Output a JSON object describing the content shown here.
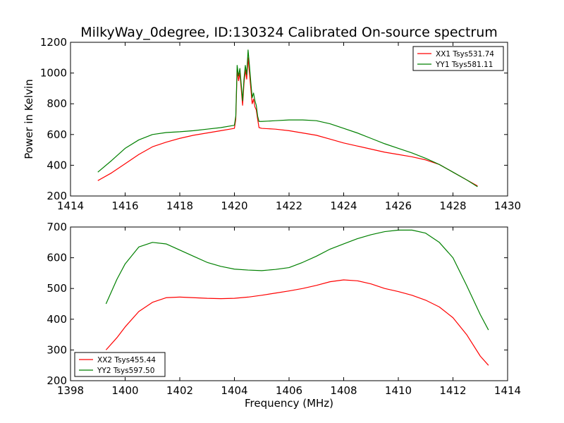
{
  "title": "MilkyWay_0degree, ID:130324 Calibrated On-source spectrum",
  "colors": {
    "xx": "#ff0000",
    "yy": "#008000"
  },
  "chart_data": [
    {
      "type": "line",
      "title": "MilkyWay_0degree, ID:130324 Calibrated On-source spectrum",
      "xlabel": "",
      "ylabel": "Power in Kelvin",
      "xlim": [
        1414,
        1430
      ],
      "ylim": [
        200,
        1200
      ],
      "xticks": [
        1414,
        1416,
        1418,
        1420,
        1422,
        1424,
        1426,
        1428,
        1430
      ],
      "yticks": [
        200,
        400,
        600,
        800,
        1000,
        1200
      ],
      "grid": false,
      "legend_position": "top-right",
      "series": [
        {
          "name": "XX1 Tsys531.74",
          "color": "#ff0000",
          "points": [
            [
              1415.0,
              300
            ],
            [
              1415.5,
              350
            ],
            [
              1416.0,
              410
            ],
            [
              1416.5,
              470
            ],
            [
              1417.0,
              520
            ],
            [
              1417.5,
              550
            ],
            [
              1418.0,
              575
            ],
            [
              1418.5,
              595
            ],
            [
              1419.0,
              610
            ],
            [
              1419.5,
              625
            ],
            [
              1420.0,
              640
            ],
            [
              1420.05,
              700
            ],
            [
              1420.1,
              1020
            ],
            [
              1420.15,
              950
            ],
            [
              1420.2,
              1000
            ],
            [
              1420.3,
              790
            ],
            [
              1420.35,
              930
            ],
            [
              1420.4,
              1020
            ],
            [
              1420.45,
              960
            ],
            [
              1420.5,
              1100
            ],
            [
              1420.55,
              1000
            ],
            [
              1420.6,
              900
            ],
            [
              1420.65,
              800
            ],
            [
              1420.7,
              830
            ],
            [
              1420.75,
              780
            ],
            [
              1420.8,
              760
            ],
            [
              1420.85,
              700
            ],
            [
              1420.9,
              645
            ],
            [
              1421.0,
              640
            ],
            [
              1421.5,
              635
            ],
            [
              1422.0,
              625
            ],
            [
              1422.5,
              610
            ],
            [
              1423.0,
              595
            ],
            [
              1423.5,
              570
            ],
            [
              1424.0,
              545
            ],
            [
              1424.5,
              525
            ],
            [
              1425.0,
              505
            ],
            [
              1425.5,
              485
            ],
            [
              1426.0,
              470
            ],
            [
              1426.5,
              455
            ],
            [
              1427.0,
              435
            ],
            [
              1427.5,
              405
            ],
            [
              1428.0,
              355
            ],
            [
              1428.5,
              305
            ],
            [
              1428.9,
              265
            ]
          ]
        },
        {
          "name": "YY1 Tsys581.11",
          "color": "#008000",
          "points": [
            [
              1415.0,
              355
            ],
            [
              1415.5,
              430
            ],
            [
              1416.0,
              510
            ],
            [
              1416.5,
              565
            ],
            [
              1417.0,
              600
            ],
            [
              1417.5,
              613
            ],
            [
              1418.0,
              618
            ],
            [
              1418.5,
              625
            ],
            [
              1419.0,
              635
            ],
            [
              1419.5,
              645
            ],
            [
              1420.0,
              660
            ],
            [
              1420.05,
              720
            ],
            [
              1420.1,
              1050
            ],
            [
              1420.15,
              980
            ],
            [
              1420.2,
              1030
            ],
            [
              1420.3,
              820
            ],
            [
              1420.35,
              960
            ],
            [
              1420.4,
              1050
            ],
            [
              1420.45,
              990
            ],
            [
              1420.5,
              1150
            ],
            [
              1420.55,
              1050
            ],
            [
              1420.6,
              940
            ],
            [
              1420.65,
              840
            ],
            [
              1420.7,
              870
            ],
            [
              1420.75,
              820
            ],
            [
              1420.8,
              790
            ],
            [
              1420.85,
              720
            ],
            [
              1420.9,
              685
            ],
            [
              1421.0,
              685
            ],
            [
              1421.5,
              690
            ],
            [
              1422.0,
              695
            ],
            [
              1422.5,
              695
            ],
            [
              1423.0,
              690
            ],
            [
              1423.5,
              670
            ],
            [
              1424.0,
              640
            ],
            [
              1424.5,
              610
            ],
            [
              1425.0,
              575
            ],
            [
              1425.5,
              540
            ],
            [
              1426.0,
              510
            ],
            [
              1426.5,
              480
            ],
            [
              1427.0,
              445
            ],
            [
              1427.5,
              405
            ],
            [
              1428.0,
              355
            ],
            [
              1428.5,
              305
            ],
            [
              1428.9,
              260
            ]
          ]
        }
      ]
    },
    {
      "type": "line",
      "title": "",
      "xlabel": "Frequency (MHz)",
      "ylabel": "",
      "xlim": [
        1398,
        1414
      ],
      "ylim": [
        200,
        700
      ],
      "xticks": [
        1398,
        1400,
        1402,
        1404,
        1406,
        1408,
        1410,
        1412,
        1414
      ],
      "yticks": [
        200,
        300,
        400,
        500,
        600,
        700
      ],
      "grid": false,
      "legend_position": "bottom-left",
      "series": [
        {
          "name": "XX2 Tsys455.44",
          "color": "#ff0000",
          "points": [
            [
              1399.3,
              300
            ],
            [
              1399.7,
              340
            ],
            [
              1400.0,
              375
            ],
            [
              1400.5,
              425
            ],
            [
              1401.0,
              455
            ],
            [
              1401.5,
              470
            ],
            [
              1402.0,
              472
            ],
            [
              1402.5,
              470
            ],
            [
              1403.0,
              468
            ],
            [
              1403.5,
              467
            ],
            [
              1404.0,
              468
            ],
            [
              1404.5,
              472
            ],
            [
              1405.0,
              478
            ],
            [
              1405.5,
              485
            ],
            [
              1406.0,
              492
            ],
            [
              1406.5,
              500
            ],
            [
              1407.0,
              510
            ],
            [
              1407.5,
              522
            ],
            [
              1408.0,
              528
            ],
            [
              1408.5,
              525
            ],
            [
              1409.0,
              515
            ],
            [
              1409.5,
              500
            ],
            [
              1410.0,
              490
            ],
            [
              1410.5,
              478
            ],
            [
              1411.0,
              462
            ],
            [
              1411.5,
              440
            ],
            [
              1412.0,
              405
            ],
            [
              1412.5,
              350
            ],
            [
              1413.0,
              280
            ],
            [
              1413.3,
              250
            ]
          ]
        },
        {
          "name": "YY2 Tsys597.50",
          "color": "#008000",
          "points": [
            [
              1399.3,
              450
            ],
            [
              1399.7,
              530
            ],
            [
              1400.0,
              580
            ],
            [
              1400.5,
              635
            ],
            [
              1401.0,
              650
            ],
            [
              1401.5,
              645
            ],
            [
              1402.0,
              625
            ],
            [
              1402.5,
              605
            ],
            [
              1403.0,
              585
            ],
            [
              1403.5,
              572
            ],
            [
              1404.0,
              563
            ],
            [
              1404.5,
              560
            ],
            [
              1405.0,
              558
            ],
            [
              1405.5,
              562
            ],
            [
              1406.0,
              568
            ],
            [
              1406.5,
              585
            ],
            [
              1407.0,
              605
            ],
            [
              1407.5,
              628
            ],
            [
              1408.0,
              645
            ],
            [
              1408.5,
              662
            ],
            [
              1409.0,
              675
            ],
            [
              1409.5,
              685
            ],
            [
              1410.0,
              690
            ],
            [
              1410.5,
              690
            ],
            [
              1411.0,
              680
            ],
            [
              1411.5,
              650
            ],
            [
              1412.0,
              600
            ],
            [
              1412.5,
              510
            ],
            [
              1413.0,
              415
            ],
            [
              1413.3,
              365
            ]
          ]
        }
      ]
    }
  ]
}
